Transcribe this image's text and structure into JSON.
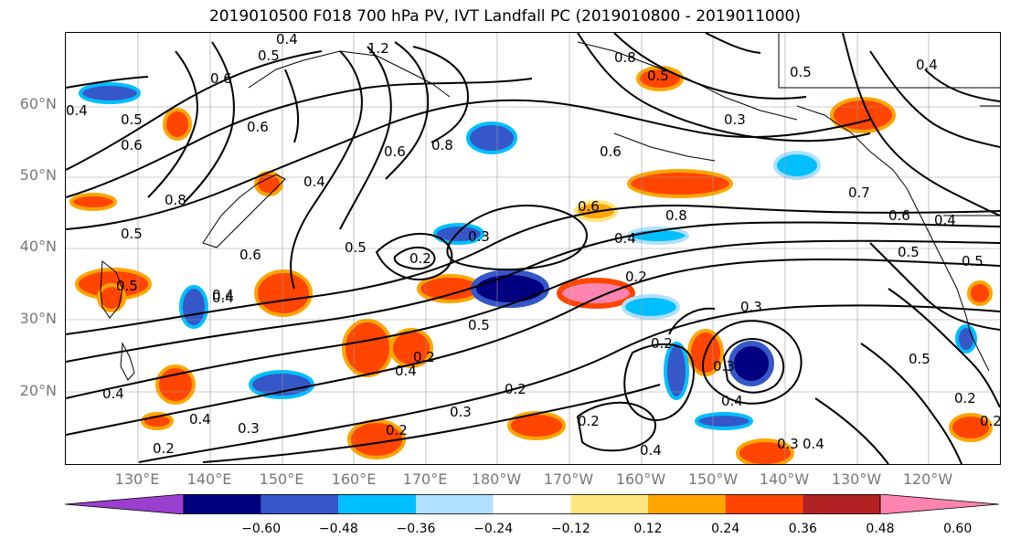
{
  "title": "2019010500 F018 700 hPa PV, IVT Landfall PC (2019010800 - 2019011000)",
  "lat_labels": [
    "60°N",
    "50°N",
    "40°N",
    "30°N",
    "20°N"
  ],
  "lon_labels": [
    "130°E",
    "140°E",
    "150°E",
    "160°E",
    "170°E",
    "180°W",
    "170°W",
    "160°W",
    "150°W",
    "140°W",
    "130°W",
    "120°W"
  ],
  "colorbar": {
    "colors": [
      "#9b3fd0",
      "#000080",
      "#3557c8",
      "#00bfff",
      "#b0e0ff",
      "#ffffff",
      "#ffe680",
      "#ffa500",
      "#ff4500",
      "#b22222",
      "#ff85b0"
    ],
    "ticks": [
      "−0.60",
      "−0.48",
      "−0.36",
      "−0.24",
      "−0.12",
      "0.12",
      "0.24",
      "0.36",
      "0.48",
      "0.60"
    ]
  },
  "contour_labels": [
    "1.2",
    "0.4",
    "0.5",
    "0.6",
    "0.6",
    "0.6",
    "0.8",
    "0.8",
    "0.8",
    "0.5",
    "0.5",
    "0.4",
    "0.6",
    "0.3",
    "0.6",
    "0.5",
    "0.6",
    "0.5",
    "0.4",
    "0.2",
    "0.3",
    "0.6",
    "0.4",
    "0.4",
    "0.8",
    "0.7",
    "0.6",
    "0.5",
    "0.5",
    "0.4",
    "0.3",
    "0.2",
    "0.4",
    "0.5",
    "0.2",
    "0.3",
    "0.2",
    "0.2",
    "0.4",
    "0.4",
    "0.2",
    "0.2",
    "0.3",
    "0.2",
    "0.3",
    "0.4",
    "0.4",
    "0.4",
    "0.5",
    "0.3",
    "0.2",
    "0.2",
    "0.4",
    "0.5",
    "0.5",
    "0.4"
  ]
}
